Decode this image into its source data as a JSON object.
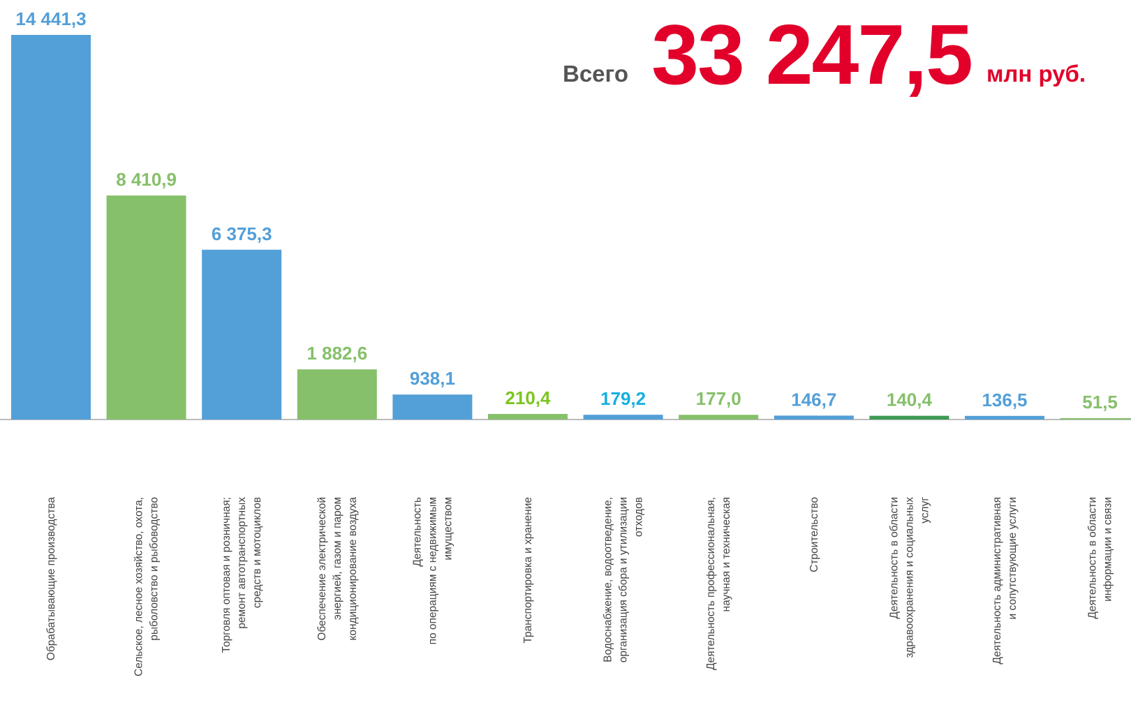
{
  "chart_data": {
    "type": "bar",
    "total": {
      "label": "Всего",
      "value": 33247.5,
      "value_label": "33 247,5",
      "unit": "млн руб."
    },
    "categories": [
      "Обрабатывающие  производства",
      "Сельское, лесное хозяйство, охота,\nрыболовство и  рыбоводство",
      "Торговля оптовая и розничная;\nремонт автотранспортных\nсредств  и мотоциклов",
      "Обеспечение электрической\nэнергией, газом и паром\nкондиционирование воздуха",
      "Деятельность\nпо операциям  с недвижимым\nимуществом",
      "Транспортировка и хранение",
      "Водоснабжение, водоотведение,\nорганизация сбора и утилизации\nотходов",
      "Деятельность профессиональная,\nнаучная и техническая",
      "Строительство",
      "Деятельность в области\nздравоохранения и социальных\nуслуг",
      "Деятельность  административная\nи сопутствующие  услуги",
      "Деятельность в области\nинформации  и связи"
    ],
    "values": [
      14441.3,
      8410.9,
      6375.3,
      1882.6,
      938.1,
      210.4,
      179.2,
      177.0,
      146.7,
      140.4,
      136.5,
      51.5
    ],
    "value_labels": [
      "14 441,3",
      "8 410,9",
      "6 375,3",
      "1 882,6",
      "938,1",
      "210,4",
      "179,2",
      "177,0",
      "146,7",
      "140,4",
      "136,5",
      "51,5"
    ],
    "colors": [
      "#539fd8",
      "#86c06a",
      "#539fd8",
      "#86c06a",
      "#539fd8",
      "#86c06a",
      "#539fd8",
      "#86c06a",
      "#539fd8",
      "#3f9a55",
      "#539fd8",
      "#86c06a"
    ],
    "label_colors": [
      "#539fd8",
      "#86c06a",
      "#539fd8",
      "#86c06a",
      "#539fd8",
      "#7cc520",
      "#17b0e0",
      "#86c06a",
      "#539fd8",
      "#86c06a",
      "#539fd8",
      "#86c06a"
    ]
  }
}
